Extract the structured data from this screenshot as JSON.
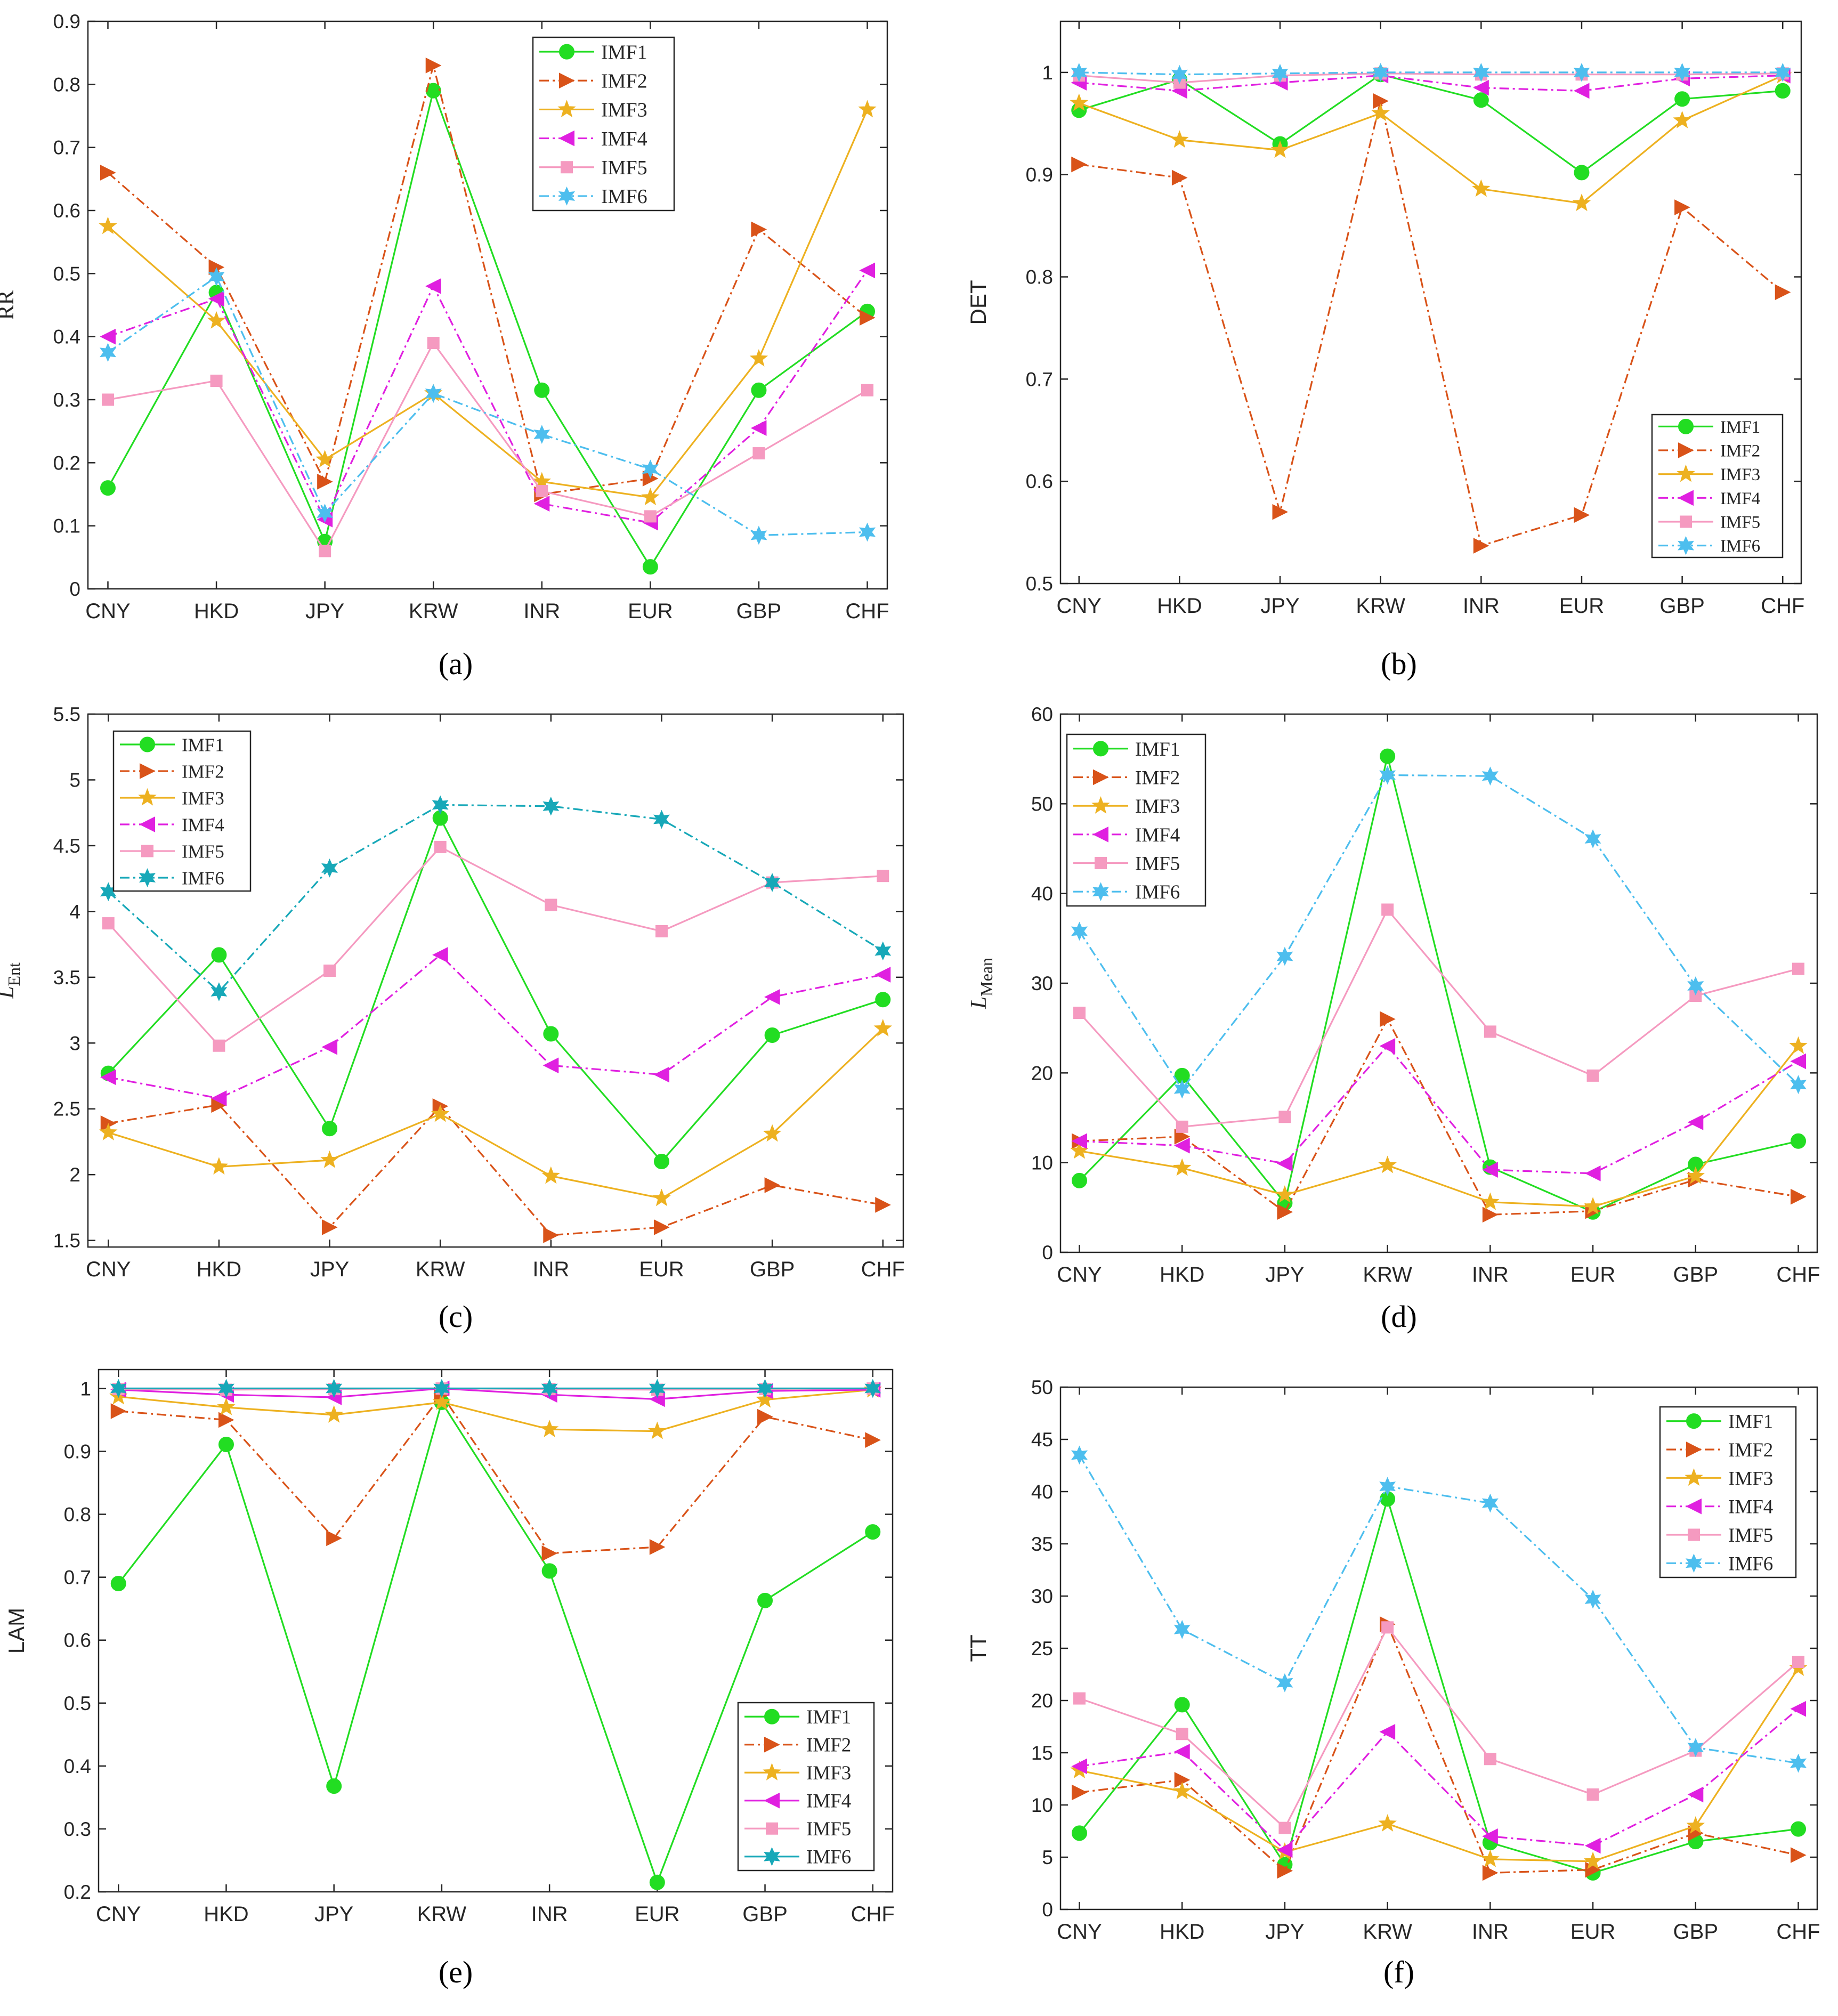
{
  "colors": {
    "IMF1": "#22dd22",
    "IMF2": "#d95319",
    "IMF3": "#edb120",
    "IMF4": "#e020e0",
    "IMF5": "#f59ac0",
    "IMF6": "#4dbeee",
    "IMF6_c": "#17a8b8"
  },
  "chart_data": [
    {
      "type": "line",
      "caption": "(a)",
      "ylabel": "RR",
      "ylim": [
        0,
        0.9
      ],
      "yticks": [
        "0",
        "0.1",
        "0.2",
        "0.3",
        "0.4",
        "0.5",
        "0.6",
        "0.7",
        "0.8",
        "0.9"
      ],
      "categories": [
        "CNY",
        "HKD",
        "JPY",
        "KRW",
        "INR",
        "EUR",
        "GBP",
        "CHF"
      ],
      "legend_position": "top-center",
      "series": [
        {
          "name": "IMF1",
          "values": [
            0.16,
            0.47,
            0.075,
            0.79,
            0.315,
            0.035,
            0.315,
            0.44
          ]
        },
        {
          "name": "IMF2",
          "values": [
            0.66,
            0.51,
            0.17,
            0.83,
            0.15,
            0.175,
            0.57,
            0.43
          ]
        },
        {
          "name": "IMF3",
          "values": [
            0.575,
            0.425,
            0.205,
            0.31,
            0.17,
            0.145,
            0.365,
            0.76
          ]
        },
        {
          "name": "IMF4",
          "values": [
            0.4,
            0.46,
            0.11,
            0.48,
            0.135,
            0.105,
            0.255,
            0.505
          ]
        },
        {
          "name": "IMF5",
          "values": [
            0.3,
            0.33,
            0.06,
            0.39,
            0.155,
            0.115,
            0.215,
            0.315
          ]
        },
        {
          "name": "IMF6",
          "values": [
            0.375,
            0.495,
            0.12,
            0.31,
            0.245,
            0.19,
            0.085,
            0.09
          ]
        }
      ]
    },
    {
      "type": "line",
      "caption": "(b)",
      "ylabel": "DET",
      "ylim": [
        0.5,
        1.05
      ],
      "yticks": [
        "0.5",
        "0.6",
        "0.7",
        "0.8",
        "0.9",
        "1"
      ],
      "categories": [
        "CNY",
        "HKD",
        "JPY",
        "KRW",
        "INR",
        "EUR",
        "GBP",
        "CHF"
      ],
      "legend_position": "bottom-right",
      "series": [
        {
          "name": "IMF1",
          "values": [
            0.963,
            0.993,
            0.93,
            0.998,
            0.973,
            0.902,
            0.974,
            0.982
          ]
        },
        {
          "name": "IMF2",
          "values": [
            0.91,
            0.897,
            0.57,
            0.972,
            0.537,
            0.567,
            0.868,
            0.785
          ]
        },
        {
          "name": "IMF3",
          "values": [
            0.97,
            0.934,
            0.924,
            0.96,
            0.886,
            0.872,
            0.953,
            0.997
          ]
        },
        {
          "name": "IMF4",
          "values": [
            0.99,
            0.982,
            0.99,
            0.997,
            0.985,
            0.982,
            0.994,
            0.997
          ]
        },
        {
          "name": "IMF5",
          "values": [
            0.997,
            0.99,
            0.997,
            0.999,
            0.998,
            0.998,
            0.998,
            0.999
          ]
        },
        {
          "name": "IMF6",
          "values": [
            1.0,
            0.998,
            0.999,
            1.0,
            1.0,
            1.0,
            1.0,
            1.0
          ]
        }
      ]
    },
    {
      "type": "line",
      "caption": "(c)",
      "ylabel_main": "L",
      "ylabel_sub": "Ent",
      "ylim": [
        1.45,
        5.5
      ],
      "yticks": [
        "1.5",
        "2",
        "2.5",
        "3",
        "3.5",
        "4",
        "4.5",
        "5",
        "5.5"
      ],
      "categories": [
        "CNY",
        "HKD",
        "JPY",
        "KRW",
        "INR",
        "EUR",
        "GBP",
        "CHF"
      ],
      "legend_position": "top-left",
      "series": [
        {
          "name": "IMF1",
          "values": [
            2.77,
            3.67,
            2.35,
            4.71,
            3.07,
            2.1,
            3.06,
            3.33
          ]
        },
        {
          "name": "IMF2",
          "values": [
            2.39,
            2.53,
            1.6,
            2.52,
            1.54,
            1.6,
            1.92,
            1.77
          ]
        },
        {
          "name": "IMF3",
          "values": [
            2.32,
            2.06,
            2.11,
            2.46,
            1.99,
            1.82,
            2.31,
            3.11
          ]
        },
        {
          "name": "IMF4",
          "values": [
            2.74,
            2.58,
            2.97,
            3.67,
            2.83,
            2.76,
            3.35,
            3.52
          ]
        },
        {
          "name": "IMF5",
          "values": [
            3.91,
            2.98,
            3.55,
            4.49,
            4.05,
            3.85,
            4.22,
            4.27
          ]
        },
        {
          "name": "IMF6",
          "values": [
            4.15,
            3.39,
            4.33,
            4.81,
            4.8,
            4.7,
            4.22,
            3.7
          ]
        }
      ]
    },
    {
      "type": "line",
      "caption": "(d)",
      "ylabel_main": "L",
      "ylabel_sub": "Mean",
      "ylim": [
        0,
        60
      ],
      "yticks": [
        "0",
        "10",
        "20",
        "30",
        "40",
        "50",
        "60"
      ],
      "categories": [
        "CNY",
        "HKD",
        "JPY",
        "KRW",
        "INR",
        "EUR",
        "GBP",
        "CHF"
      ],
      "legend_position": "top-left",
      "series": [
        {
          "name": "IMF1",
          "values": [
            8.0,
            19.7,
            5.5,
            55.3,
            9.5,
            4.5,
            9.8,
            12.4
          ]
        },
        {
          "name": "IMF2",
          "values": [
            12.4,
            12.9,
            4.5,
            26.0,
            4.2,
            4.6,
            8.1,
            6.2
          ]
        },
        {
          "name": "IMF3",
          "values": [
            11.3,
            9.4,
            6.4,
            9.7,
            5.6,
            5.1,
            8.5,
            23.0
          ]
        },
        {
          "name": "IMF4",
          "values": [
            12.4,
            11.9,
            9.9,
            23.0,
            9.2,
            8.8,
            14.5,
            21.3
          ]
        },
        {
          "name": "IMF5",
          "values": [
            26.7,
            14.0,
            15.1,
            38.2,
            24.6,
            19.7,
            28.6,
            31.6
          ]
        },
        {
          "name": "IMF6",
          "values": [
            35.8,
            18.2,
            33.0,
            53.2,
            53.1,
            46.1,
            29.7,
            18.7
          ]
        }
      ]
    },
    {
      "type": "line",
      "caption": "(e)",
      "ylabel": "LAM",
      "ylim": [
        0.2,
        1.03
      ],
      "yticks": [
        "0.2",
        "0.3",
        "0.4",
        "0.5",
        "0.6",
        "0.7",
        "0.8",
        "0.9",
        "1"
      ],
      "categories": [
        "CNY",
        "HKD",
        "JPY",
        "KRW",
        "INR",
        "EUR",
        "GBP",
        "CHF"
      ],
      "legend_position": "bottom-right",
      "series": [
        {
          "name": "IMF1",
          "values": [
            0.69,
            0.911,
            0.368,
            0.978,
            0.71,
            0.215,
            0.663,
            0.772
          ]
        },
        {
          "name": "IMF2",
          "values": [
            0.964,
            0.95,
            0.762,
            0.99,
            0.738,
            0.748,
            0.955,
            0.918
          ]
        },
        {
          "name": "IMF3",
          "values": [
            0.987,
            0.97,
            0.958,
            0.978,
            0.935,
            0.932,
            0.982,
            0.998
          ]
        },
        {
          "name": "IMF4",
          "values": [
            0.998,
            0.99,
            0.986,
            1.0,
            0.99,
            0.983,
            0.996,
            0.998
          ]
        },
        {
          "name": "IMF5",
          "values": [
            0.999,
            0.998,
            0.999,
            1.0,
            0.999,
            0.998,
            0.999,
            1.0
          ]
        },
        {
          "name": "IMF6",
          "values": [
            1.0,
            1.0,
            1.0,
            1.0,
            1.0,
            1.0,
            1.0,
            1.0
          ]
        }
      ]
    },
    {
      "type": "line",
      "caption": "(f)",
      "ylabel": "TT",
      "ylim": [
        0,
        50
      ],
      "yticks": [
        "0",
        "5",
        "10",
        "15",
        "20",
        "25",
        "30",
        "35",
        "40",
        "45",
        "50"
      ],
      "categories": [
        "CNY",
        "HKD",
        "JPY",
        "KRW",
        "INR",
        "EUR",
        "GBP",
        "CHF"
      ],
      "legend_position": "top-right",
      "series": [
        {
          "name": "IMF1",
          "values": [
            7.3,
            19.6,
            4.3,
            39.3,
            6.4,
            3.5,
            6.5,
            7.7
          ]
        },
        {
          "name": "IMF2",
          "values": [
            11.2,
            12.4,
            3.7,
            27.3,
            3.5,
            3.8,
            7.3,
            5.2
          ]
        },
        {
          "name": "IMF3",
          "values": [
            13.3,
            11.3,
            5.5,
            8.2,
            4.8,
            4.6,
            8.0,
            23.1
          ]
        },
        {
          "name": "IMF4",
          "values": [
            13.7,
            15.1,
            5.7,
            17.0,
            7.0,
            6.1,
            11.0,
            19.2
          ]
        },
        {
          "name": "IMF5",
          "values": [
            20.2,
            16.8,
            7.8,
            27.0,
            14.4,
            11.0,
            15.2,
            23.7
          ]
        },
        {
          "name": "IMF6",
          "values": [
            43.5,
            26.8,
            21.7,
            40.5,
            38.9,
            29.7,
            15.5,
            14.0
          ]
        }
      ]
    }
  ]
}
